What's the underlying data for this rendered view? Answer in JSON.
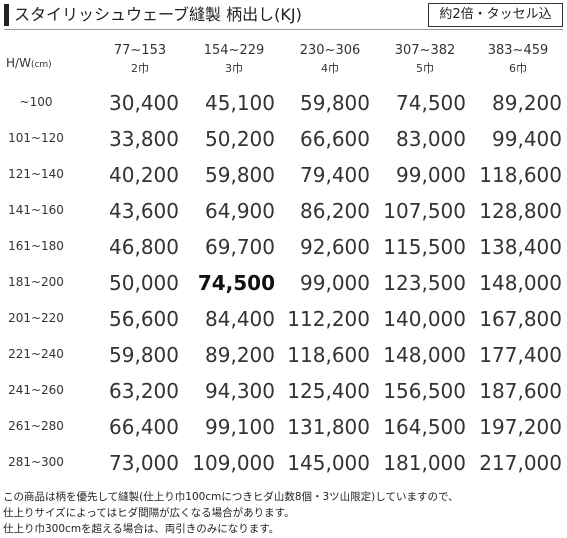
{
  "header": {
    "title": "スタイリッシュウェーブ縫製 柄出し(KJ)",
    "badge": "約2倍・タッセル込"
  },
  "table": {
    "corner": {
      "main": "H/W",
      "unit": "(cm)"
    },
    "columns": [
      {
        "range": "77~153",
        "width": "2巾"
      },
      {
        "range": "154~229",
        "width": "3巾"
      },
      {
        "range": "230~306",
        "width": "4巾"
      },
      {
        "range": "307~382",
        "width": "5巾"
      },
      {
        "range": "383~459",
        "width": "6巾"
      }
    ],
    "rows": [
      {
        "label": "~100",
        "cells": [
          "30,400",
          "45,100",
          "59,800",
          "74,500",
          "89,200"
        ]
      },
      {
        "label": "101~120",
        "cells": [
          "33,800",
          "50,200",
          "66,600",
          "83,000",
          "99,400"
        ]
      },
      {
        "label": "121~140",
        "cells": [
          "40,200",
          "59,800",
          "79,400",
          "99,000",
          "118,600"
        ]
      },
      {
        "label": "141~160",
        "cells": [
          "43,600",
          "64,900",
          "86,200",
          "107,500",
          "128,800"
        ]
      },
      {
        "label": "161~180",
        "cells": [
          "46,800",
          "69,700",
          "92,600",
          "115,500",
          "138,400"
        ]
      },
      {
        "label": "181~200",
        "cells": [
          "50,000",
          "74,500",
          "99,000",
          "123,500",
          "148,000"
        ]
      },
      {
        "label": "201~220",
        "cells": [
          "56,600",
          "84,400",
          "112,200",
          "140,000",
          "167,800"
        ]
      },
      {
        "label": "221~240",
        "cells": [
          "59,800",
          "89,200",
          "118,600",
          "148,000",
          "177,400"
        ]
      },
      {
        "label": "241~260",
        "cells": [
          "63,200",
          "94,300",
          "125,400",
          "156,500",
          "187,600"
        ]
      },
      {
        "label": "261~280",
        "cells": [
          "66,400",
          "99,100",
          "131,800",
          "164,500",
          "197,200"
        ]
      },
      {
        "label": "281~300",
        "cells": [
          "73,000",
          "109,000",
          "145,000",
          "181,000",
          "217,000"
        ]
      }
    ],
    "emphasis": {
      "row": 5,
      "col": 1
    }
  },
  "notes": [
    "この商品は柄を優先して縫製(仕上り巾100cmにつきヒダ山数8個・3ツ山限定)していますので、",
    "仕上りサイズによってはヒダ間隔が広くなる場合があります。",
    "仕上り巾300cmを超える場合は、両引きのみになります。"
  ]
}
